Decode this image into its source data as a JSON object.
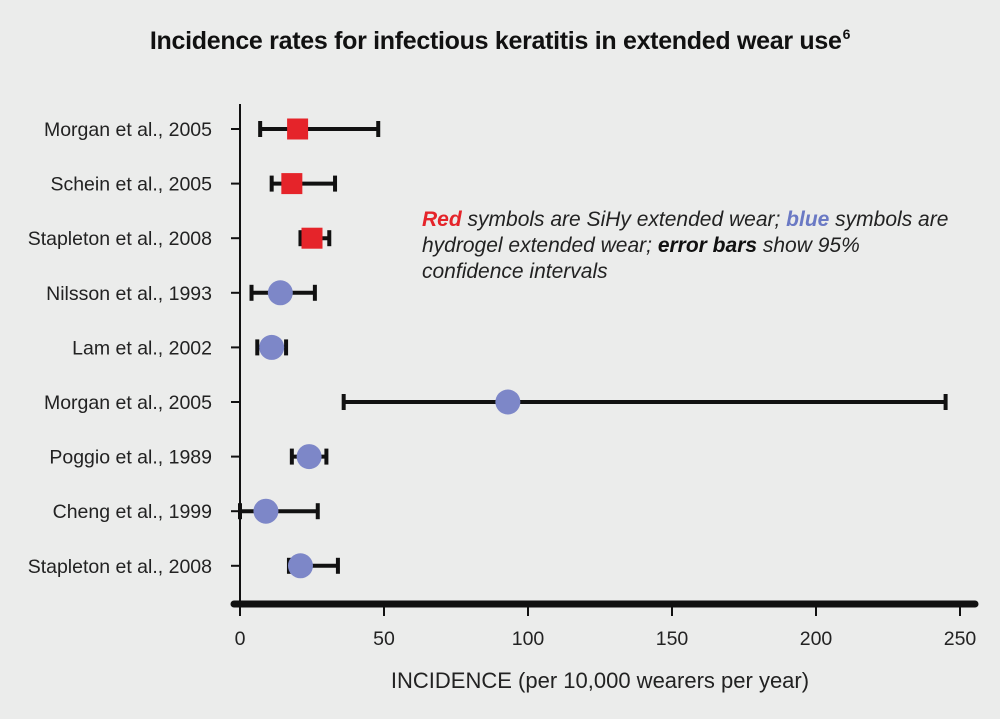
{
  "chart_data": {
    "type": "forest",
    "title": "Incidence rates for infectious keratitis in extended wear use",
    "title_ref": "6",
    "xlabel": "INCIDENCE (per 10,000 wearers per year)",
    "xlim": [
      0,
      250
    ],
    "xticks": [
      0,
      50,
      100,
      150,
      200,
      250
    ],
    "studies": [
      {
        "label": "Morgan et al., 2005",
        "group": "sihy",
        "estimate": 20,
        "low": 7,
        "high": 48
      },
      {
        "label": "Schein et al., 2005",
        "group": "sihy",
        "estimate": 18,
        "low": 11,
        "high": 33
      },
      {
        "label": "Stapleton et al., 2008",
        "group": "sihy",
        "estimate": 25,
        "low": 21,
        "high": 31
      },
      {
        "label": "Nilsson et al., 1993",
        "group": "hydrogel",
        "estimate": 14,
        "low": 4,
        "high": 26
      },
      {
        "label": "Lam et al., 2002",
        "group": "hydrogel",
        "estimate": 11,
        "low": 6,
        "high": 16
      },
      {
        "label": "Morgan et al., 2005",
        "group": "hydrogel",
        "estimate": 93,
        "low": 36,
        "high": 245
      },
      {
        "label": "Poggio et al., 1989",
        "group": "hydrogel",
        "estimate": 24,
        "low": 18,
        "high": 30
      },
      {
        "label": "Cheng et al., 1999",
        "group": "hydrogel",
        "estimate": 9,
        "low": 0,
        "high": 27
      },
      {
        "label": "Stapleton et al., 2008",
        "group": "hydrogel",
        "estimate": 21,
        "low": 17,
        "high": 34
      }
    ],
    "legend": {
      "red_word": "Red",
      "part1": " symbols are SiHy extended wear; ",
      "blue_word": "blue",
      "part2": " symbols are hydrogel extended wear; ",
      "bars_word": "error bars",
      "part3": " show 95% confidence intervals"
    },
    "colors": {
      "sihy": "#e5242a",
      "hydrogel": "#7d87c8",
      "axis": "#111111",
      "background": "#ebeceb"
    }
  }
}
